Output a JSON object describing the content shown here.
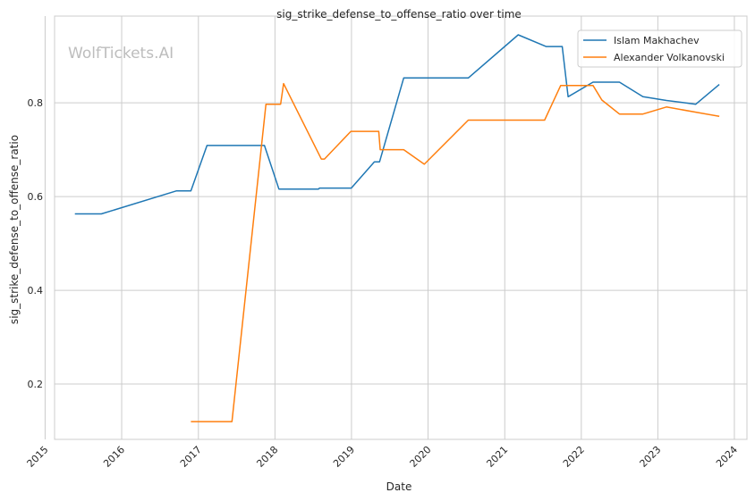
{
  "chart_data": {
    "type": "line",
    "title": "sig_strike_defense_to_offense_ratio over time",
    "xlabel": "Date",
    "ylabel": "sig_strike_defense_to_offense_ratio",
    "watermark": "WolfTickets.AI",
    "x_ticks": [
      "2015",
      "2016",
      "2017",
      "2018",
      "2019",
      "2020",
      "2021",
      "2022",
      "2023",
      "2024"
    ],
    "y_ticks": [
      "0.2",
      "0.4",
      "0.6",
      "0.8"
    ],
    "xlim": [
      "2015-02-15",
      "2024-03-01"
    ],
    "ylim": [
      0.082,
      0.985
    ],
    "grid": true,
    "legend_position": "top-right",
    "series": [
      {
        "name": "Islam Makhachev",
        "color": "#1f77b4",
        "points": [
          [
            "2015-05-23",
            0.563
          ],
          [
            "2015-09-26",
            0.563
          ],
          [
            "2016-09-17",
            0.612
          ],
          [
            "2016-11-26",
            0.612
          ],
          [
            "2017-02-11",
            0.709
          ],
          [
            "2017-11-12",
            0.709
          ],
          [
            "2018-01-20",
            0.616
          ],
          [
            "2018-07-28",
            0.616
          ],
          [
            "2018-08-01",
            0.618
          ],
          [
            "2018-12-31",
            0.618
          ],
          [
            "2019-04-20",
            0.674
          ],
          [
            "2019-05-15",
            0.674
          ],
          [
            "2019-09-07",
            0.853
          ],
          [
            "2020-07-11",
            0.853
          ],
          [
            "2021-03-06",
            0.945
          ],
          [
            "2021-07-17",
            0.92
          ],
          [
            "2021-10-02",
            0.92
          ],
          [
            "2021-10-30",
            0.813
          ],
          [
            "2022-02-26",
            0.844
          ],
          [
            "2022-07-02",
            0.844
          ],
          [
            "2022-10-22",
            0.813
          ],
          [
            "2023-02-11",
            0.805
          ],
          [
            "2023-07-01",
            0.797
          ],
          [
            "2023-10-21",
            0.839
          ]
        ]
      },
      {
        "name": "Alexander Volkanovski",
        "color": "#ff7f0e",
        "points": [
          [
            "2016-11-26",
            0.12
          ],
          [
            "2017-06-10",
            0.12
          ],
          [
            "2017-11-19",
            0.797
          ],
          [
            "2018-01-28",
            0.797
          ],
          [
            "2018-02-11",
            0.841
          ],
          [
            "2018-08-10",
            0.68
          ],
          [
            "2018-08-25",
            0.68
          ],
          [
            "2018-12-29",
            0.739
          ],
          [
            "2019-05-11",
            0.739
          ],
          [
            "2019-05-18",
            0.7
          ],
          [
            "2019-09-07",
            0.7
          ],
          [
            "2019-12-14",
            0.669
          ],
          [
            "2020-07-11",
            0.763
          ],
          [
            "2021-07-10",
            0.763
          ],
          [
            "2021-09-25",
            0.837
          ],
          [
            "2022-02-26",
            0.837
          ],
          [
            "2022-04-09",
            0.806
          ],
          [
            "2022-07-02",
            0.776
          ],
          [
            "2022-10-22",
            0.776
          ],
          [
            "2023-02-11",
            0.791
          ],
          [
            "2023-10-21",
            0.771
          ]
        ]
      }
    ]
  }
}
